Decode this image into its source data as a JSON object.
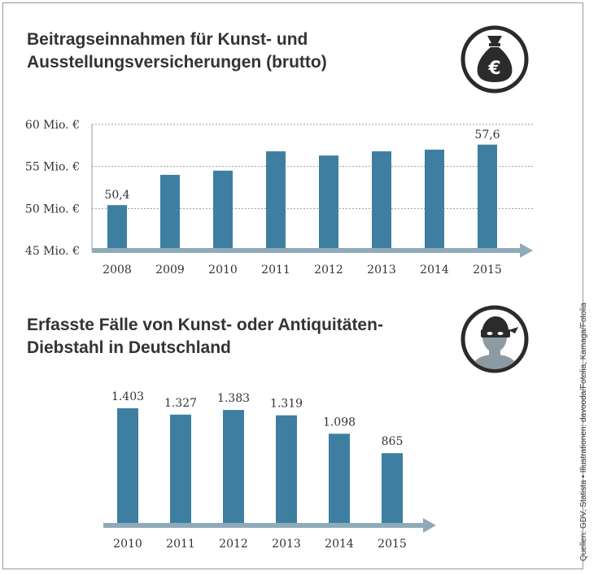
{
  "charts": [
    {
      "title_line1": "Beitragseinnahmen für Kunst- und",
      "title_line2": "Ausstellungsversicherungen (brutto)",
      "icon": "money-bag-euro-icon"
    },
    {
      "title_line1": "Erfasste Fälle von Kunst- oder Antiquitäten-",
      "title_line2": "Diebstahl in Deutschland",
      "icon": "masked-thief-icon"
    }
  ],
  "source": "Quellen: GDV, Statista • Illustrationen: davooda/Fotolia, Kamaga/Fotolia",
  "colors": {
    "bar": "#3e7fa1",
    "axis_arrow": "#8faab8",
    "grid": "#9a9a9a",
    "icon_dark": "#2b2b2b"
  },
  "chart_data": [
    {
      "type": "bar",
      "categories": [
        "2008",
        "2009",
        "2010",
        "2011",
        "2012",
        "2013",
        "2014",
        "2015"
      ],
      "values": [
        50.4,
        54.0,
        54.5,
        56.8,
        56.3,
        56.8,
        57.0,
        57.6
      ],
      "data_labels": {
        "0": "50,4",
        "7": "57,6"
      },
      "ylim": [
        45,
        60
      ],
      "yticks": [
        45,
        50,
        55,
        60
      ],
      "ytick_labels": [
        "45 Mio. €",
        "50 Mio. €",
        "55 Mio. €",
        "60 Mio. €"
      ],
      "grid": true,
      "title": "Beitragseinnahmen für Kunst- und Ausstellungsversicherungen (brutto)"
    },
    {
      "type": "bar",
      "categories": [
        "2010",
        "2011",
        "2012",
        "2013",
        "2014",
        "2015"
      ],
      "values": [
        1403,
        1327,
        1383,
        1319,
        1098,
        865
      ],
      "data_labels": [
        "1.403",
        "1.327",
        "1.383",
        "1.319",
        "1.098",
        "865"
      ],
      "ylim": [
        0,
        1403
      ],
      "grid": false,
      "title": "Erfasste Fälle von Kunst- oder Antiquitäten-Diebstahl in Deutschland"
    }
  ]
}
